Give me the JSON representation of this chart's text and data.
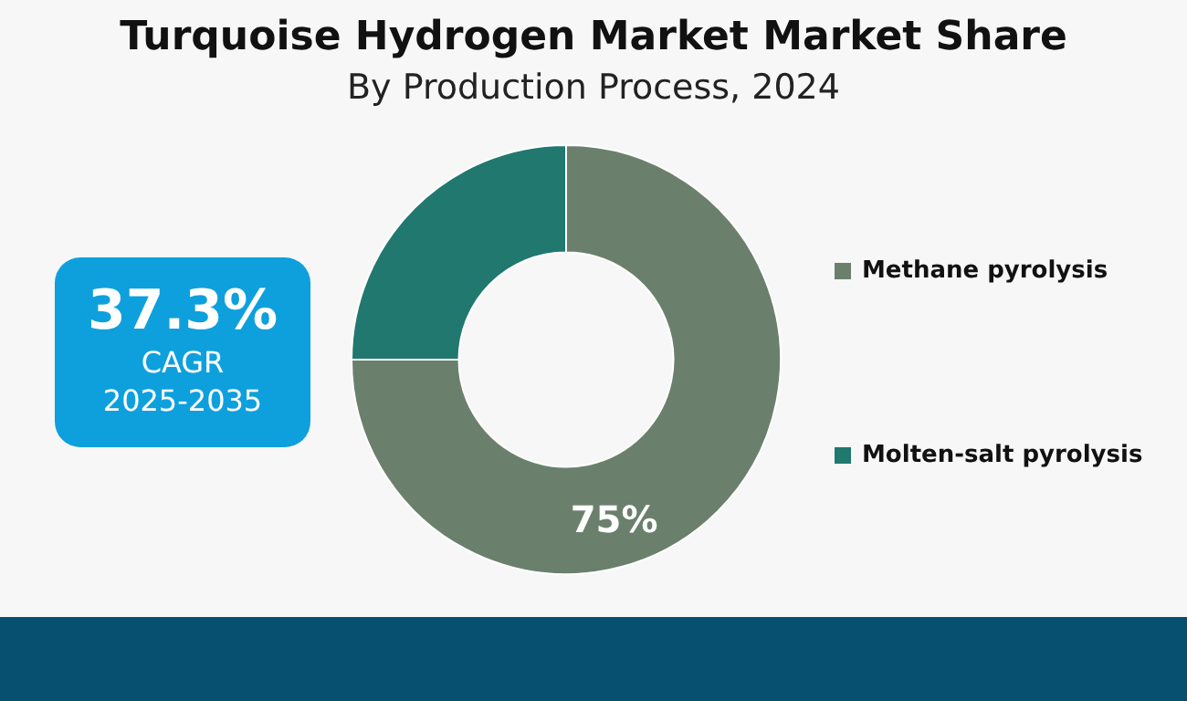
{
  "chart_data": {
    "type": "donut",
    "title": "Turquoise Hydrogen Market Market Share",
    "subtitle": "By Production Process, 2024",
    "categories": [
      "Methane pyrolysis",
      "Molten-salt pyrolysis"
    ],
    "values": [
      75,
      25
    ],
    "colors": [
      "#6b806c",
      "#20786e"
    ],
    "value_labels": [
      "75%",
      null
    ],
    "legend": "right",
    "annotations": [
      "37.3%",
      "CAGR",
      "2025-2035"
    ]
  }
}
